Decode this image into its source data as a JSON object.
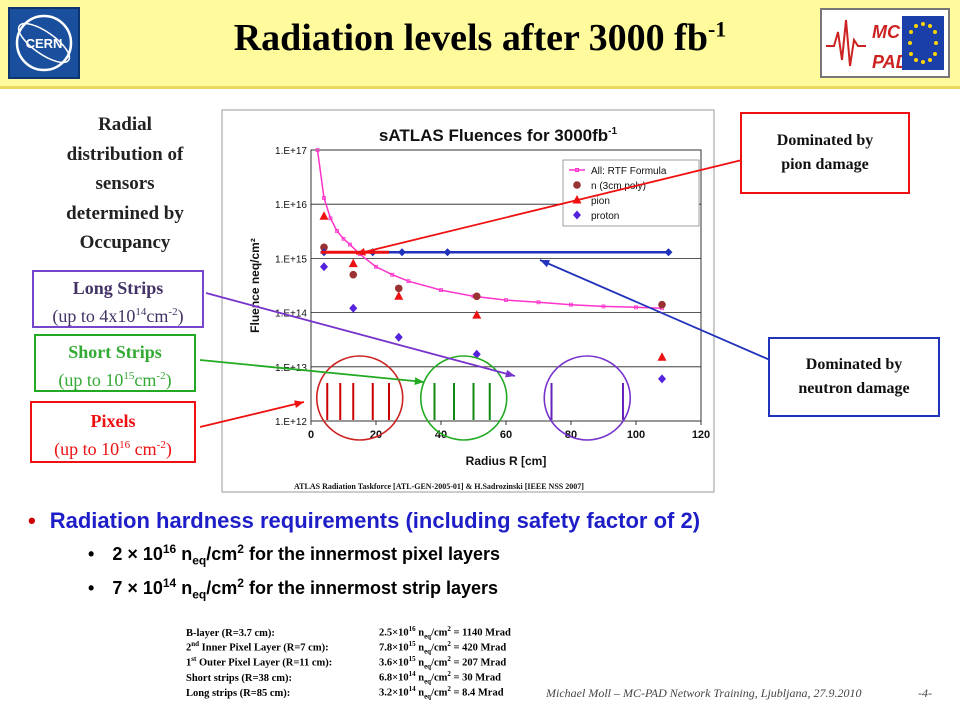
{
  "header": {
    "title_main": "Radiation levels after 3000 fb",
    "title_sup": "-1",
    "cern_logo_text": "CERN",
    "mcpad_logo_top": "MC",
    "mcpad_logo_bottom": "PAD"
  },
  "left_labels": {
    "radial": [
      "Radial",
      "distribution of",
      "sensors",
      "determined by",
      "Occupancy"
    ],
    "long_strips": {
      "title": "Long Strips",
      "sub_pre": "(up to 4x10",
      "sub_exp": "14",
      "sub_unit": "cm",
      "sub_unit_exp": "-2",
      "sub_post": ")"
    },
    "short_strips": {
      "title": "Short Strips",
      "sub_pre": "(up to 10",
      "sub_exp": "15",
      "sub_unit": "cm",
      "sub_unit_exp": "-2",
      "sub_post": ")"
    },
    "pixels": {
      "title": "Pixels",
      "sub_pre": "(up to 10",
      "sub_exp": "16",
      "sub_unit": " cm",
      "sub_unit_exp": "-2",
      "sub_post": ")"
    }
  },
  "callouts": {
    "pion": [
      "Dominated by",
      "pion damage"
    ],
    "neutron": [
      "Dominated by",
      "neutron damage"
    ]
  },
  "chart_data": {
    "type": "scatter",
    "title": "sATLAS Fluences for 3000fb",
    "title_sup": "-1",
    "xlabel": "Radius R [cm]",
    "ylabel": "Fluence neq/cm^2",
    "xlim": [
      0,
      120
    ],
    "ylim_log10": [
      12,
      17
    ],
    "log_y": true,
    "x_ticks": [
      "0",
      "20",
      "40",
      "60",
      "80",
      "100",
      "120"
    ],
    "y_ticks": [
      "1.E+12",
      "1.E+13",
      "1.E+14",
      "1.E+15",
      "1.E+16",
      "1.E+17"
    ],
    "legend_position": "top-right",
    "caption": "ATLAS Radiation Taskforce [ATL-GEN-2005-01] & H.Sadrozinski [IEEE NSS 2007]",
    "series": [
      {
        "name": "All: RTF Formula",
        "marker": "line",
        "color": "#ff33cc",
        "x": [
          2,
          4,
          6,
          8,
          10,
          12,
          15,
          20,
          25,
          30,
          40,
          50,
          60,
          70,
          80,
          90,
          100,
          108
        ],
        "y": [
          1e+17,
          1.3e+16,
          5500000000000000.0,
          3200000000000000.0,
          2300000000000000.0,
          1800000000000000.0,
          1200000000000000.0,
          700000000000000.0,
          500000000000000.0,
          380000000000000.0,
          260000000000000.0,
          200000000000000.0,
          170000000000000.0,
          155000000000000.0,
          140000000000000.0,
          130000000000000.0,
          125000000000000.0,
          120000000000000.0
        ]
      },
      {
        "name": "n (3cm poly)",
        "marker": "circle",
        "color": "#993333",
        "x": [
          4,
          13,
          27,
          51,
          108
        ],
        "y": [
          1600000000000000.0,
          500000000000000.0,
          280000000000000.0,
          200000000000000.0,
          140000000000000.0
        ]
      },
      {
        "name": "pion",
        "marker": "triangle",
        "color": "#ee1111",
        "x": [
          4,
          13,
          27,
          51,
          108
        ],
        "y": [
          6000000000000000.0,
          800000000000000.0,
          200000000000000.0,
          90000000000000.0,
          15000000000000.0
        ]
      },
      {
        "name": "proton",
        "marker": "diamond",
        "color": "#5522dd",
        "x": [
          4,
          13,
          27,
          51,
          108
        ],
        "y": [
          700000000000000.0,
          120000000000000.0,
          35000000000000.0,
          17000000000000.0,
          6000000000000.0
        ]
      }
    ],
    "overlays": {
      "horizontal_line": {
        "x": [
          4,
          110
        ],
        "y": 1300000000000000.0,
        "color": "#2233bb"
      },
      "sensor_lines": {
        "pixels": {
          "x": [
            5,
            9,
            13,
            19,
            24
          ],
          "color": "#cc0000"
        },
        "short_strips": {
          "x": [
            38,
            44,
            50,
            55
          ],
          "color": "#118811"
        },
        "long_strips": {
          "x": [
            74,
            96
          ],
          "color": "#6622bb"
        }
      },
      "rings": [
        {
          "name": "pixels",
          "cx": 15,
          "color": "#cc2222"
        },
        {
          "name": "short_strips",
          "cx": 47,
          "color": "#22aa22"
        },
        {
          "name": "long_strips",
          "cx": 85,
          "color": "#7733cc"
        }
      ]
    }
  },
  "bullets": {
    "main": "Radiation hardness requirements (including safety factor of 2)",
    "sub": [
      {
        "pre": "2 × 10",
        "exp": "16",
        "n": " n",
        "sub": "eq",
        "unit": "/cm",
        "uexp": "2",
        "post": " for the innermost pixel layers"
      },
      {
        "pre": "7 × 10",
        "exp": "14",
        "n": " n",
        "sub": "eq",
        "unit": "/cm",
        "uexp": "2",
        "post": " for the innermost strip layers"
      }
    ]
  },
  "table": [
    {
      "label": "B-layer (R=3.7 cm):",
      "mant": "2.5×10",
      "exp": "16",
      "rest": " = 1140 Mrad"
    },
    {
      "label_pre": "2",
      "label_sup": "nd",
      "label": " Inner Pixel Layer (R=7 cm):",
      "mant": "7.8×10",
      "exp": "15",
      "rest": " = 420 Mrad"
    },
    {
      "label_pre": "1",
      "label_sup": "st",
      "label": " Outer Pixel Layer (R=11 cm):",
      "mant": "3.6×10",
      "exp": "15",
      "rest": " = 207 Mrad"
    },
    {
      "label": "Short strips (R=38 cm):",
      "mant": "6.8×10",
      "exp": "14",
      "rest": " = 30 Mrad"
    },
    {
      "label": "Long strips (R=85 cm):",
      "mant": "3.2×10",
      "exp": "14",
      "rest": " = 8.4 Mrad"
    }
  ],
  "table_unit": {
    "n": " n",
    "sub": "eq",
    "unit": "/cm",
    "uexp": "2"
  },
  "footer": "Michael Moll – MC-PAD Network Training, Ljubljana, 27.9.2010",
  "page_number": "-4-",
  "colors": {
    "title_bg": "#fffb9c",
    "bullet_blue": "#1e1ec8",
    "red_box": "#ee1111",
    "blue_box": "#2233bb",
    "green_box": "#22aa22",
    "purple_box": "#7744cc"
  }
}
